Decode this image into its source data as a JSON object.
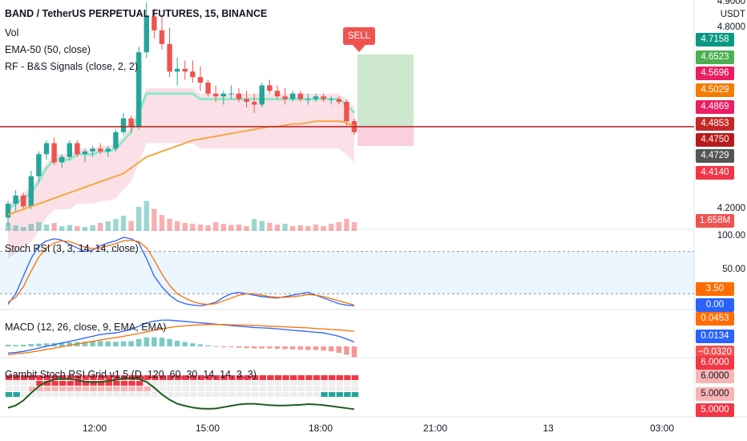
{
  "header": {
    "symbol": "BAND / TetherUS PERPETUAL FUTURES, 15, BINANCE",
    "vol_label": "Vol",
    "ema_label": "EMA-50 (50, close)",
    "rf_label": "RF - B&S Signals (close, 2, 2)"
  },
  "signal": {
    "label": "SELL"
  },
  "price_scale": {
    "currency": "USDT",
    "top_value": "4.9000",
    "mid_value": "4.8000",
    "low_value": "4.2000"
  },
  "price_tags": [
    {
      "value": "4.7158",
      "color": "#089981"
    },
    {
      "value": "4.6523",
      "color": "#4caf50"
    },
    {
      "value": "4.5696",
      "color": "#e91e63"
    },
    {
      "value": "4.5029",
      "color": "#f57c00"
    },
    {
      "value": "4.4869",
      "color": "#e91e63"
    },
    {
      "value": "4.4853",
      "color": "#c62828"
    },
    {
      "value": "4.4750",
      "color": "#b71c1c"
    },
    {
      "value": "4.4729",
      "color": "#555555"
    },
    {
      "value": "4.4140",
      "color": "#f23645"
    }
  ],
  "volume_tag": {
    "value": "1.658M",
    "color": "#ef5350"
  },
  "stoch_rsi": {
    "label": "Stoch RSI (3, 3, 14, 14, close)",
    "scale_top": "100.00",
    "scale_mid": "50.00",
    "tag_k": "3.50",
    "tag_d": "0.00"
  },
  "macd": {
    "label": "MACD (12, 26, close, 9, EMA, EMA)",
    "tag_signal": "0.0453",
    "tag_macd": "0.0134",
    "tag_hist": "−0.0320"
  },
  "gambit": {
    "label": "Gambit Stoch RSI Grid v1.5 (D, 120, 60, 30, 14, 14, 3, 3)",
    "tag_top": "6.0000",
    "tag_a": "6.0000",
    "tag_b": "5.0000",
    "tag_c": "5.0000"
  },
  "time_axis": [
    "12:00",
    "15:00",
    "18:00",
    "21:00",
    "13",
    "03:00"
  ],
  "colors": {
    "up": "#26a69a",
    "down": "#ef5350",
    "ema": "#f5a742",
    "stoch_k": "#2962ff",
    "stoch_d": "#ff6d00",
    "range_up": "#8ee8c8",
    "range_down": "#f8c8d4"
  },
  "chart_data": {
    "type": "candlestick",
    "candles": [
      [
        4.17,
        4.23,
        4.14,
        4.22
      ],
      [
        4.22,
        4.27,
        4.19,
        4.25
      ],
      [
        4.25,
        4.26,
        4.2,
        4.21
      ],
      [
        4.21,
        4.34,
        4.2,
        4.32
      ],
      [
        4.32,
        4.41,
        4.3,
        4.4
      ],
      [
        4.4,
        4.45,
        4.38,
        4.44
      ],
      [
        4.44,
        4.46,
        4.36,
        4.37
      ],
      [
        4.37,
        4.4,
        4.35,
        4.39
      ],
      [
        4.39,
        4.45,
        4.38,
        4.44
      ],
      [
        4.44,
        4.45,
        4.39,
        4.4
      ],
      [
        4.4,
        4.42,
        4.37,
        4.41
      ],
      [
        4.41,
        4.43,
        4.39,
        4.42
      ],
      [
        4.42,
        4.44,
        4.4,
        4.41
      ],
      [
        4.41,
        4.43,
        4.39,
        4.42
      ],
      [
        4.42,
        4.49,
        4.41,
        4.48
      ],
      [
        4.48,
        4.55,
        4.47,
        4.53
      ],
      [
        4.53,
        4.54,
        4.48,
        4.5
      ],
      [
        4.5,
        4.79,
        4.49,
        4.77
      ],
      [
        4.77,
        4.95,
        4.75,
        4.9
      ],
      [
        4.9,
        4.93,
        4.82,
        4.85
      ],
      [
        4.85,
        4.9,
        4.78,
        4.8
      ],
      [
        4.8,
        4.86,
        4.68,
        4.7
      ],
      [
        4.7,
        4.75,
        4.65,
        4.71
      ],
      [
        4.71,
        4.74,
        4.67,
        4.7
      ],
      [
        4.7,
        4.74,
        4.66,
        4.68
      ],
      [
        4.68,
        4.72,
        4.63,
        4.66
      ],
      [
        4.66,
        4.67,
        4.61,
        4.62
      ],
      [
        4.62,
        4.65,
        4.59,
        4.61
      ],
      [
        4.61,
        4.63,
        4.58,
        4.62
      ],
      [
        4.62,
        4.65,
        4.6,
        4.62
      ],
      [
        4.62,
        4.64,
        4.59,
        4.6
      ],
      [
        4.6,
        4.63,
        4.57,
        4.59
      ],
      [
        4.59,
        4.62,
        4.55,
        4.58
      ],
      [
        4.58,
        4.66,
        4.57,
        4.65
      ],
      [
        4.65,
        4.67,
        4.62,
        4.63
      ],
      [
        4.63,
        4.65,
        4.6,
        4.61
      ],
      [
        4.61,
        4.64,
        4.58,
        4.6
      ],
      [
        4.6,
        4.63,
        4.59,
        4.62
      ],
      [
        4.62,
        4.63,
        4.59,
        4.6
      ],
      [
        4.6,
        4.62,
        4.58,
        4.6
      ],
      [
        4.6,
        4.62,
        4.59,
        4.61
      ],
      [
        4.61,
        4.62,
        4.59,
        4.6
      ],
      [
        4.6,
        4.61,
        4.58,
        4.6
      ],
      [
        4.6,
        4.61,
        4.58,
        4.59
      ],
      [
        4.59,
        4.6,
        4.5,
        4.52
      ],
      [
        4.52,
        4.53,
        4.47,
        4.48
      ]
    ],
    "volume": [
      [
        20,
        1
      ],
      [
        14,
        1
      ],
      [
        10,
        1
      ],
      [
        18,
        1
      ],
      [
        22,
        1
      ],
      [
        16,
        1
      ],
      [
        20,
        0
      ],
      [
        12,
        1
      ],
      [
        15,
        1
      ],
      [
        12,
        0
      ],
      [
        10,
        1
      ],
      [
        14,
        1
      ],
      [
        20,
        0
      ],
      [
        24,
        1
      ],
      [
        30,
        1
      ],
      [
        38,
        1
      ],
      [
        25,
        0
      ],
      [
        60,
        1
      ],
      [
        75,
        1
      ],
      [
        55,
        0
      ],
      [
        40,
        0
      ],
      [
        30,
        0
      ],
      [
        24,
        0
      ],
      [
        20,
        0
      ],
      [
        18,
        0
      ],
      [
        16,
        0
      ],
      [
        14,
        0
      ],
      [
        22,
        0
      ],
      [
        18,
        0
      ],
      [
        15,
        0
      ],
      [
        16,
        0
      ],
      [
        12,
        0
      ],
      [
        30,
        1
      ],
      [
        25,
        1
      ],
      [
        20,
        0
      ],
      [
        16,
        0
      ],
      [
        18,
        1
      ],
      [
        12,
        0
      ],
      [
        14,
        0
      ],
      [
        12,
        0
      ],
      [
        16,
        0
      ],
      [
        12,
        0
      ],
      [
        18,
        0
      ],
      [
        22,
        0
      ],
      [
        30,
        0
      ],
      [
        22,
        0
      ]
    ],
    "ema50": [
      4.18,
      4.19,
      4.2,
      4.21,
      4.22,
      4.23,
      4.24,
      4.25,
      4.26,
      4.27,
      4.28,
      4.29,
      4.3,
      4.31,
      4.32,
      4.33,
      4.35,
      4.37,
      4.39,
      4.4,
      4.41,
      4.42,
      4.43,
      4.44,
      4.45,
      4.455,
      4.46,
      4.465,
      4.47,
      4.475,
      4.48,
      4.485,
      4.49,
      4.495,
      4.5,
      4.5,
      4.505,
      4.51,
      4.51,
      4.515,
      4.52,
      4.52,
      4.52,
      4.52,
      4.515,
      4.5
    ],
    "range_filter": [
      4.2,
      4.22,
      4.24,
      4.26,
      4.3,
      4.35,
      4.38,
      4.38,
      4.38,
      4.4,
      4.4,
      4.4,
      4.41,
      4.41,
      4.42,
      4.45,
      4.48,
      4.55,
      4.62,
      4.62,
      4.62,
      4.62,
      4.62,
      4.62,
      4.62,
      4.6,
      4.6,
      4.6,
      4.6,
      4.6,
      4.6,
      4.6,
      4.6,
      4.6,
      4.6,
      4.6,
      4.6,
      4.6,
      4.6,
      4.6,
      4.6,
      4.6,
      4.6,
      4.6,
      4.58,
      4.55
    ],
    "stoch_k": [
      5,
      20,
      45,
      70,
      88,
      95,
      98,
      96,
      90,
      85,
      80,
      82,
      88,
      92,
      95,
      100,
      98,
      92,
      70,
      45,
      30,
      18,
      10,
      6,
      4,
      3,
      5,
      8,
      15,
      20,
      22,
      20,
      18,
      16,
      15,
      14,
      16,
      18,
      20,
      22,
      18,
      14,
      10,
      6,
      4,
      3
    ],
    "stoch_d": [
      8,
      15,
      30,
      52,
      72,
      85,
      92,
      95,
      94,
      90,
      86,
      84,
      85,
      88,
      91,
      95,
      96,
      94,
      85,
      68,
      48,
      32,
      20,
      14,
      9,
      6,
      5,
      6,
      10,
      14,
      18,
      20,
      20,
      18,
      16,
      15,
      15,
      16,
      17,
      19,
      18,
      16,
      13,
      10,
      7,
      4
    ],
    "macd_line": [
      -0.02,
      -0.018,
      -0.015,
      -0.01,
      -0.005,
      0.0,
      0.005,
      0.01,
      0.015,
      0.02,
      0.025,
      0.03,
      0.035,
      0.038,
      0.04,
      0.045,
      0.05,
      0.06,
      0.07,
      0.075,
      0.078,
      0.078,
      0.076,
      0.074,
      0.072,
      0.07,
      0.068,
      0.066,
      0.064,
      0.062,
      0.06,
      0.058,
      0.056,
      0.055,
      0.054,
      0.052,
      0.05,
      0.048,
      0.046,
      0.044,
      0.042,
      0.04,
      0.035,
      0.03,
      0.022,
      0.013
    ],
    "signal_line": [
      -0.025,
      -0.022,
      -0.02,
      -0.017,
      -0.013,
      -0.009,
      -0.005,
      -0.001,
      0.003,
      0.007,
      0.011,
      0.015,
      0.019,
      0.023,
      0.026,
      0.03,
      0.034,
      0.038,
      0.043,
      0.048,
      0.052,
      0.056,
      0.059,
      0.061,
      0.063,
      0.064,
      0.065,
      0.065,
      0.065,
      0.064,
      0.064,
      0.063,
      0.062,
      0.061,
      0.06,
      0.059,
      0.058,
      0.057,
      0.056,
      0.055,
      0.053,
      0.052,
      0.05,
      0.049,
      0.047,
      0.045
    ],
    "ylim_price": [
      4.13,
      4.96
    ],
    "ylim_stoch": [
      0,
      100
    ]
  }
}
